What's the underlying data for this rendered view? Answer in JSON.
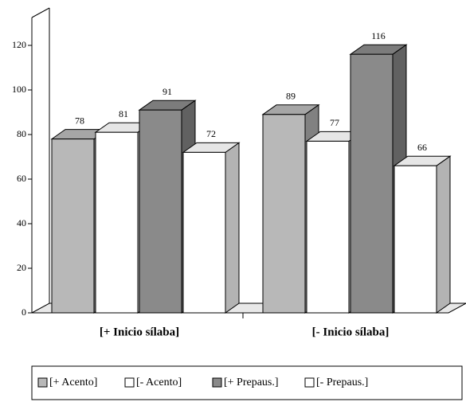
{
  "chart_data": {
    "type": "bar3d",
    "categories": [
      "[+ Inicio sílaba]",
      "[- Inicio sílaba]"
    ],
    "series": [
      {
        "name": "[+ Acento]",
        "color": "#b8b8b8",
        "values": [
          78,
          89
        ]
      },
      {
        "name": "[- Acento]",
        "color": "#ffffff",
        "values": [
          81,
          77
        ]
      },
      {
        "name": "[+ Prepaus.]",
        "color": "#8a8a8a",
        "values": [
          91,
          116
        ]
      },
      {
        "name": "[- Prepaus.]",
        "color": "#ffffff",
        "values": [
          72,
          66
        ]
      }
    ],
    "ylim": [
      0,
      135
    ],
    "yticks": [
      0,
      20,
      40,
      60,
      80,
      100,
      120
    ],
    "legend": "bottom"
  }
}
